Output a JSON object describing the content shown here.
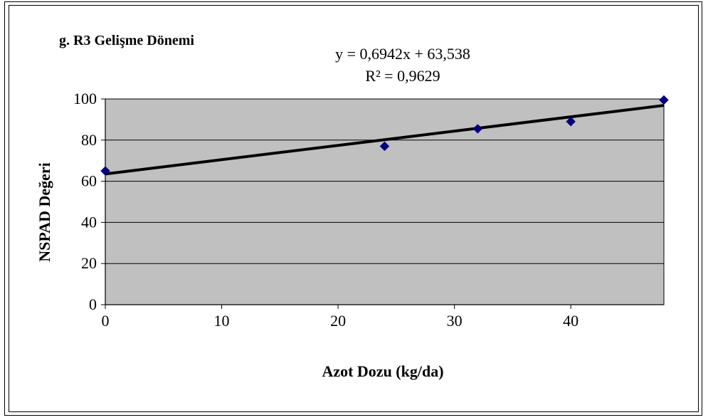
{
  "chart_data": {
    "type": "scatter",
    "title": "g. R3 Gelişme Dönemi",
    "xlabel": "Azot Dozu (kg/da)",
    "ylabel": "NSPAD Değeri",
    "xlim": [
      0,
      48
    ],
    "ylim": [
      0,
      100
    ],
    "x_ticks": [
      "0",
      "10",
      "20",
      "30",
      "40"
    ],
    "y_ticks": [
      "0",
      "20",
      "40",
      "60",
      "80",
      "100"
    ],
    "x_tick_values": [
      0,
      10,
      20,
      30,
      40
    ],
    "y_tick_values": [
      0,
      20,
      40,
      60,
      80,
      100
    ],
    "grid": "horizontal",
    "plot_background": "#c0c0c0",
    "marker_color": "#000080",
    "trendline_color": "#000000",
    "points": [
      {
        "x": 0,
        "y": 65
      },
      {
        "x": 24,
        "y": 77
      },
      {
        "x": 32,
        "y": 85.5
      },
      {
        "x": 40,
        "y": 89
      },
      {
        "x": 48,
        "y": 99.5
      }
    ],
    "trendline": {
      "slope": 0.6942,
      "intercept": 63.538,
      "equation": "y = 0,6942x + 63,538",
      "r_squared": "R² = 0,9629"
    }
  }
}
